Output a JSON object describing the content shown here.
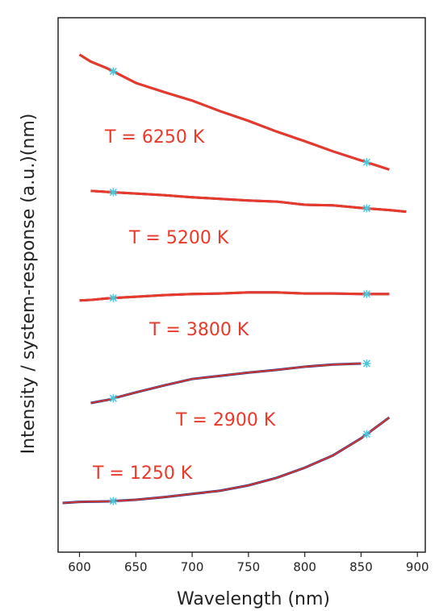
{
  "chart_data": {
    "type": "line",
    "xlabel": "Wavelength (nm)",
    "ylabel": "Intensity / system-response (a.u.)(nm)",
    "x": [
      585,
      600,
      610,
      625,
      650,
      675,
      700,
      725,
      750,
      775,
      800,
      825,
      850,
      875,
      890
    ],
    "series": [
      {
        "name": "T = 6250 K",
        "color": "#e8392a",
        "values": [
          null,
          93.1,
          91.8,
          90.5,
          87.8,
          86.1,
          84.5,
          82.5,
          80.7,
          78.7,
          76.9,
          75.0,
          73.3,
          71.6,
          null
        ]
      },
      {
        "name": "T = 5200 K",
        "color": "#e8392a",
        "values": [
          null,
          null,
          67.6,
          67.4,
          67.1,
          66.8,
          66.4,
          66.1,
          65.8,
          65.6,
          65.0,
          64.9,
          64.4,
          64.0,
          63.7
        ]
      },
      {
        "name": "T = 3800 K",
        "color": "#e8392a",
        "values": [
          null,
          47.1,
          47.2,
          47.5,
          47.8,
          48.1,
          48.3,
          48.4,
          48.6,
          48.6,
          48.4,
          48.4,
          48.3,
          48.3,
          null
        ]
      },
      {
        "name": "T = 2900 K",
        "color": "#e8392a",
        "values": [
          null,
          null,
          27.9,
          28.5,
          29.9,
          31.2,
          32.4,
          33.0,
          33.6,
          34.1,
          34.7,
          35.1,
          35.3,
          null,
          null
        ]
      },
      {
        "name": "T = 1250 K",
        "color": "#e8392a",
        "values": [
          9.2,
          9.4,
          9.45,
          9.5,
          9.8,
          10.3,
          10.9,
          11.5,
          12.5,
          13.9,
          15.8,
          18.1,
          21.3,
          25.2,
          null
        ]
      }
    ],
    "data_color": "#2b2a7a",
    "marker_color": "#4fc3d9",
    "fit_range": [
      630,
      855
    ],
    "xlim": [
      581,
      907
    ],
    "ylim": [
      0,
      100
    ],
    "xticks": [
      600,
      650,
      700,
      750,
      800,
      850,
      900
    ]
  }
}
